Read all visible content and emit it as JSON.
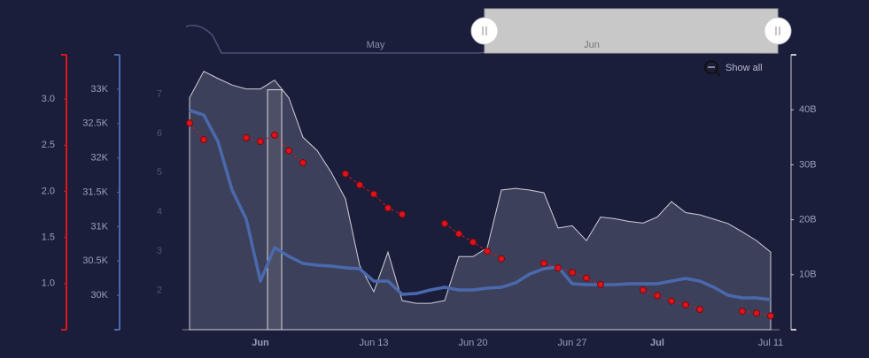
{
  "navigator": {
    "labels": [
      "May",
      "Jun"
    ]
  },
  "show_all": "Show all",
  "chart_data": {
    "type": "multi-axis",
    "categories": [
      null,
      null,
      null,
      null,
      null,
      "Jun",
      null,
      null,
      null,
      null,
      null,
      null,
      null,
      "Jun 13",
      null,
      null,
      null,
      null,
      null,
      null,
      "Jun 20",
      null,
      null,
      null,
      null,
      null,
      null,
      "Jun 27",
      null,
      null,
      null,
      null,
      null,
      "Jul",
      null,
      null,
      null,
      null,
      null,
      null,
      null,
      "Jul 11"
    ],
    "y_axes": [
      {
        "color": "#e0121a",
        "ylim": [
          0.5,
          3.48
        ],
        "yticks": [
          {
            "value": 1,
            "label": "1.0"
          },
          1.5,
          {
            "value": 2,
            "label": "2.0"
          },
          2.5,
          {
            "value": 3,
            "label": "3.0"
          }
        ]
      },
      {
        "color": "#4a69ad",
        "ylim": [
          29500,
          33500
        ],
        "yticks": [
          {
            "value": 30000,
            "label": "30K"
          },
          {
            "value": 30500,
            "label": "30.5K"
          },
          {
            "value": 31000,
            "label": "31K"
          },
          {
            "value": 31500,
            "label": "31.5K"
          },
          {
            "value": 32000,
            "label": "32K"
          },
          {
            "value": 32500,
            "label": "32.5K"
          },
          {
            "value": 33000,
            "label": "33K"
          }
        ]
      },
      {
        "color": "#4f5470",
        "ylim": [
          1,
          8
        ],
        "yticks": [
          2,
          3,
          4,
          5,
          6,
          7
        ]
      },
      {
        "color": "#c8c8c8",
        "ylim": [
          0,
          50000000000
        ],
        "yticks": [
          {
            "value": 10000000000,
            "label": "10B"
          },
          {
            "value": 20000000000,
            "label": "20B"
          },
          {
            "value": 30000000000,
            "label": "30B"
          },
          {
            "value": 40000000000,
            "label": "40B"
          }
        ]
      }
    ],
    "series": [
      {
        "type": "area",
        "axis": 3,
        "color": "#cfcfd8",
        "values": [
          42200000000,
          47000000000,
          45700000000,
          44500000000,
          43800000000,
          43800000000,
          45400000000,
          42200000000,
          35000000000,
          32600000000,
          28600000000,
          23800000000,
          11700000000,
          6900000000,
          14100000000,
          5300000000,
          4800000000,
          4800000000,
          5300000000,
          13300000000,
          13300000000,
          14900000000,
          25400000000,
          25700000000,
          25400000000,
          24900000000,
          18500000000,
          18900000000,
          16200000000,
          20500000000,
          20200000000,
          19700000000,
          19400000000,
          20500000000,
          23300000000,
          21300000000,
          20900000000,
          20100000000,
          19300000000,
          17800000000,
          16200000000,
          14100000000
        ]
      },
      {
        "type": "bar",
        "axis": 2,
        "color": "#d8d8e0",
        "values": [
          null,
          null,
          null,
          null,
          null,
          null,
          7.11,
          null,
          null,
          null,
          null,
          null,
          null,
          null,
          null,
          null,
          null,
          null,
          null,
          null,
          null,
          null,
          null,
          null,
          null,
          null,
          null,
          null,
          null,
          null,
          null,
          null,
          null,
          null,
          null,
          null,
          null,
          null,
          null,
          null,
          null,
          null
        ]
      },
      {
        "type": "line",
        "axis": 1,
        "color": "#4a69ad",
        "values": [
          32690,
          32625,
          32240,
          31532,
          31108,
          30207,
          30696,
          30568,
          30465,
          30439,
          30426,
          30400,
          30387,
          30207,
          30207,
          30014,
          30027,
          30079,
          30117,
          30079,
          30079,
          30105,
          30117,
          30182,
          30310,
          30387,
          30413,
          30169,
          30156,
          30156,
          30156,
          30169,
          30169,
          30169,
          30207,
          30246,
          30207,
          30117,
          30002,
          29963,
          29963,
          29937
        ]
      },
      {
        "type": "line",
        "axis": 0,
        "color": "#e0121a",
        "dashed": true,
        "markers": true,
        "values": [
          2.74,
          2.56,
          null,
          null,
          2.58,
          2.54,
          2.61,
          2.44,
          2.31,
          null,
          null,
          2.19,
          2.07,
          1.97,
          1.82,
          1.75,
          null,
          null,
          1.65,
          1.54,
          1.45,
          1.35,
          1.27,
          null,
          null,
          1.22,
          1.17,
          1.12,
          1.06,
          0.99,
          null,
          null,
          0.93,
          0.87,
          0.81,
          0.77,
          0.72,
          null,
          null,
          0.7,
          0.68,
          0.65
        ]
      }
    ]
  }
}
